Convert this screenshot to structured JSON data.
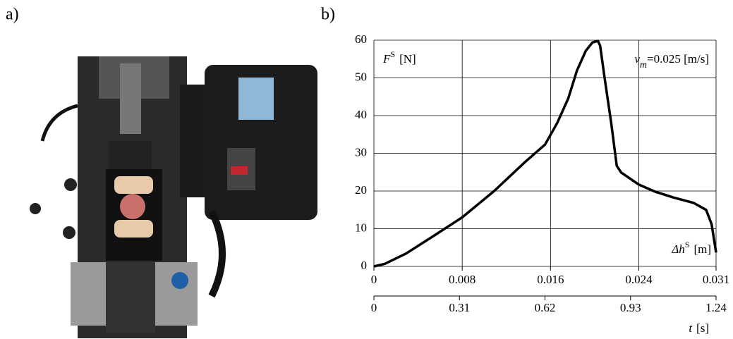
{
  "panel_labels": [
    "a)",
    "b)"
  ],
  "chart_data": {
    "type": "line",
    "x": [
      0,
      0.001,
      0.0029,
      0.0051,
      0.008,
      0.0109,
      0.0137,
      0.0155,
      0.0166,
      0.0176,
      0.0184,
      0.0192,
      0.0198,
      0.0203,
      0.0205,
      0.0209,
      0.0215,
      0.022,
      0.0224,
      0.024,
      0.0255,
      0.0271,
      0.029,
      0.0301,
      0.0306,
      0.031
    ],
    "values": [
      0,
      0.7,
      3.4,
      7.5,
      13,
      20,
      27.7,
      32.3,
      38,
      44.5,
      52,
      57.2,
      59.4,
      59.8,
      58.5,
      50,
      38,
      26.7,
      24.9,
      21.7,
      19.8,
      18.3,
      16.8,
      15,
      11.2,
      3.7
    ],
    "color": "#000000",
    "xlim": [
      0,
      0.031
    ],
    "xticks": [
      0,
      0.008,
      0.016,
      0.024,
      0.031
    ],
    "x2lim": [
      0,
      1.24
    ],
    "x2ticks": [
      0,
      0.31,
      0.62,
      0.93,
      1.24
    ],
    "ylim": [
      0,
      60
    ],
    "yticks": [
      0,
      10,
      20,
      30,
      40,
      50,
      60
    ],
    "grid": true,
    "y_label": {
      "base": "F",
      "sup": "S",
      "unit": "[N]"
    },
    "annotation": {
      "base": "v",
      "sub": "m",
      "text": "=0.025  [m/s]"
    },
    "x_label": {
      "base": "Δh",
      "sup": "S",
      "unit": "[m]"
    },
    "x2_label": {
      "base": "t",
      "unit": "[s]"
    }
  }
}
